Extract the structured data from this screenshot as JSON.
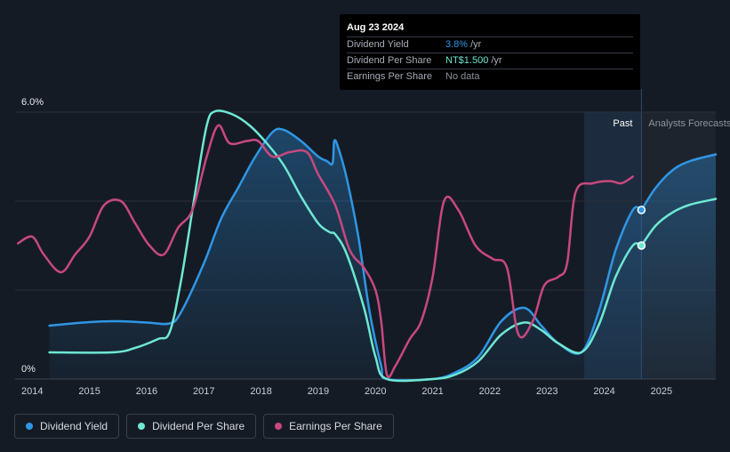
{
  "chart_data": {
    "type": "line",
    "x_ticks": [
      "2014",
      "2015",
      "2016",
      "2017",
      "2018",
      "2019",
      "2020",
      "2021",
      "2022",
      "2023",
      "2024",
      "2025"
    ],
    "y_ticks": [
      "6.0%",
      "0%"
    ],
    "ylim": [
      0,
      6.0
    ],
    "xlim": [
      2013.7,
      2025.95
    ],
    "past_label": "Past",
    "forecast_label": "Analysts Forecasts",
    "past_region": [
      2023.65,
      2024.65
    ],
    "forecast_region": [
      2024.65,
      2025.95
    ],
    "grid": true,
    "legend_placement": "bottom-left",
    "series": [
      {
        "name": "Dividend Yield",
        "color": "#2f96e6",
        "fill": true,
        "points": [
          [
            2014.3,
            1.2
          ],
          [
            2015.0,
            1.28
          ],
          [
            2015.5,
            1.3
          ],
          [
            2016.0,
            1.27
          ],
          [
            2016.4,
            1.25
          ],
          [
            2016.6,
            1.5
          ],
          [
            2017.0,
            2.6
          ],
          [
            2017.3,
            3.6
          ],
          [
            2017.6,
            4.3
          ],
          [
            2017.9,
            5.0
          ],
          [
            2018.2,
            5.55
          ],
          [
            2018.4,
            5.6
          ],
          [
            2018.7,
            5.35
          ],
          [
            2019.0,
            5.0
          ],
          [
            2019.15,
            4.9
          ],
          [
            2019.25,
            4.85
          ],
          [
            2019.28,
            5.35
          ],
          [
            2019.35,
            5.2
          ],
          [
            2019.5,
            4.5
          ],
          [
            2019.7,
            3.2
          ],
          [
            2019.9,
            1.5
          ],
          [
            2020.1,
            0.3
          ],
          [
            2020.2,
            0.0
          ],
          [
            2021.0,
            0.0
          ],
          [
            2021.4,
            0.15
          ],
          [
            2021.8,
            0.5
          ],
          [
            2022.2,
            1.3
          ],
          [
            2022.6,
            1.6
          ],
          [
            2022.9,
            1.2
          ],
          [
            2023.2,
            0.8
          ],
          [
            2023.6,
            0.6
          ],
          [
            2023.9,
            1.5
          ],
          [
            2024.2,
            2.9
          ],
          [
            2024.5,
            3.8
          ],
          [
            2024.65,
            3.8
          ]
        ]
      },
      {
        "name": "Dividend Per Share",
        "color": "#6ee7d3",
        "fill": false,
        "points": [
          [
            2014.3,
            0.6
          ],
          [
            2015.4,
            0.6
          ],
          [
            2015.8,
            0.7
          ],
          [
            2016.2,
            0.9
          ],
          [
            2016.4,
            1.05
          ],
          [
            2016.6,
            2.2
          ],
          [
            2016.85,
            4.2
          ],
          [
            2017.05,
            5.7
          ],
          [
            2017.2,
            6.02
          ],
          [
            2017.5,
            5.95
          ],
          [
            2017.8,
            5.7
          ],
          [
            2018.1,
            5.3
          ],
          [
            2018.4,
            4.8
          ],
          [
            2018.7,
            4.1
          ],
          [
            2019.0,
            3.5
          ],
          [
            2019.2,
            3.3
          ],
          [
            2019.3,
            3.25
          ],
          [
            2019.5,
            2.8
          ],
          [
            2019.8,
            1.6
          ],
          [
            2020.0,
            0.5
          ],
          [
            2020.2,
            0.0
          ],
          [
            2021.0,
            0.0
          ],
          [
            2021.4,
            0.1
          ],
          [
            2021.8,
            0.4
          ],
          [
            2022.2,
            1.0
          ],
          [
            2022.6,
            1.27
          ],
          [
            2022.9,
            1.1
          ],
          [
            2023.2,
            0.8
          ],
          [
            2023.6,
            0.6
          ],
          [
            2023.9,
            1.2
          ],
          [
            2024.2,
            2.3
          ],
          [
            2024.5,
            3.0
          ],
          [
            2024.65,
            3.0
          ]
        ]
      },
      {
        "name": "Earnings Per Share",
        "color": "#c8487f",
        "fill": false,
        "points": [
          [
            2013.75,
            3.05
          ],
          [
            2014.0,
            3.2
          ],
          [
            2014.2,
            2.8
          ],
          [
            2014.5,
            2.4
          ],
          [
            2014.75,
            2.8
          ],
          [
            2015.0,
            3.2
          ],
          [
            2015.25,
            3.9
          ],
          [
            2015.55,
            4.0
          ],
          [
            2015.8,
            3.5
          ],
          [
            2016.05,
            3.0
          ],
          [
            2016.3,
            2.8
          ],
          [
            2016.55,
            3.4
          ],
          [
            2016.8,
            3.8
          ],
          [
            2017.05,
            5.0
          ],
          [
            2017.25,
            5.7
          ],
          [
            2017.45,
            5.3
          ],
          [
            2017.75,
            5.35
          ],
          [
            2017.95,
            5.35
          ],
          [
            2018.2,
            5.0
          ],
          [
            2018.5,
            5.1
          ],
          [
            2018.8,
            5.1
          ],
          [
            2019.0,
            4.6
          ],
          [
            2019.3,
            3.9
          ],
          [
            2019.55,
            2.9
          ],
          [
            2019.8,
            2.5
          ],
          [
            2020.0,
            2.0
          ],
          [
            2020.1,
            1.3
          ],
          [
            2020.2,
            0.1
          ],
          [
            2020.35,
            0.3
          ],
          [
            2020.6,
            0.9
          ],
          [
            2020.8,
            1.3
          ],
          [
            2021.0,
            2.3
          ],
          [
            2021.2,
            4.0
          ],
          [
            2021.45,
            3.8
          ],
          [
            2021.75,
            3.0
          ],
          [
            2022.05,
            2.7
          ],
          [
            2022.3,
            2.5
          ],
          [
            2022.5,
            1.0
          ],
          [
            2022.75,
            1.3
          ],
          [
            2022.95,
            2.1
          ],
          [
            2023.2,
            2.3
          ],
          [
            2023.35,
            2.6
          ],
          [
            2023.5,
            4.2
          ],
          [
            2023.8,
            4.4
          ],
          [
            2024.1,
            4.45
          ],
          [
            2024.3,
            4.4
          ],
          [
            2024.5,
            4.55
          ]
        ]
      },
      {
        "name": "Dividend Yield forecast",
        "color": "#2f96e6",
        "fill": true,
        "forecast": true,
        "points": [
          [
            2024.65,
            3.8
          ],
          [
            2024.9,
            4.3
          ],
          [
            2025.2,
            4.7
          ],
          [
            2025.5,
            4.9
          ],
          [
            2025.95,
            5.05
          ]
        ]
      },
      {
        "name": "Dividend Per Share forecast",
        "color": "#6ee7d3",
        "fill": false,
        "forecast": true,
        "points": [
          [
            2024.65,
            3.0
          ],
          [
            2024.9,
            3.45
          ],
          [
            2025.2,
            3.75
          ],
          [
            2025.5,
            3.92
          ],
          [
            2025.95,
            4.05
          ]
        ]
      }
    ],
    "markers": [
      {
        "series": "Dividend Yield",
        "x": 2024.65,
        "y": 3.8
      },
      {
        "series": "Dividend Per Share",
        "x": 2024.65,
        "y": 3.0
      }
    ]
  },
  "tooltip": {
    "date": "Aug 23 2024",
    "rows": [
      {
        "label": "Dividend Yield",
        "value": "3.8%",
        "unit": "/yr",
        "color": "#2f96e6"
      },
      {
        "label": "Dividend Per Share",
        "value": "NT$1.500",
        "unit": "/yr",
        "color": "#6ee7d3"
      },
      {
        "label": "Earnings Per Share",
        "value": "No data",
        "unit": "",
        "color": "#8a909a"
      }
    ]
  },
  "legend": [
    {
      "label": "Dividend Yield",
      "color": "#2f96e6"
    },
    {
      "label": "Dividend Per Share",
      "color": "#6ee7d3"
    },
    {
      "label": "Earnings Per Share",
      "color": "#c8487f"
    }
  ]
}
